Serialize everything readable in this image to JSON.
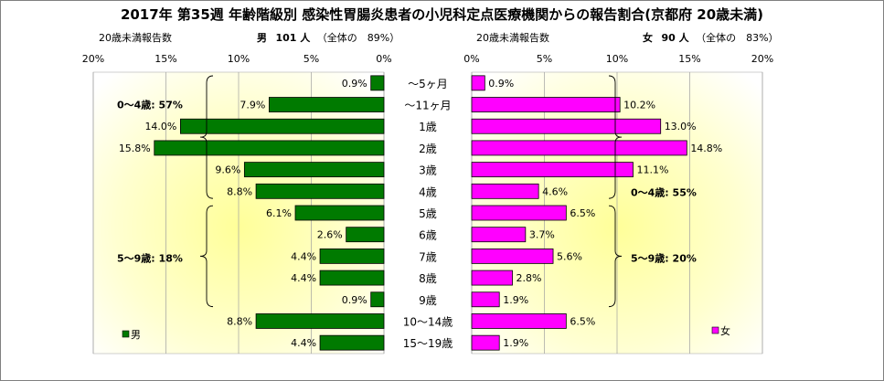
{
  "title": "2017年 第35週 年齢階級別 感染性胃腸炎患者の小児科定点医療機関からの報告割合(京都府 20歳未満)",
  "left_header": {
    "label": "20歳未満報告数",
    "sex": "男",
    "count_text": "101 人",
    "share_text": "（全体の　89%）"
  },
  "right_header": {
    "label": "20歳未満報告数",
    "sex": "女",
    "count_text": "90 人",
    "share_text": "（全体の　83%）"
  },
  "chart_data": {
    "type": "bar",
    "orientation": "horizontal",
    "layout": "population-pyramid",
    "categories": [
      "～5ヶ月",
      "～11ヶ月",
      "1歳",
      "2歳",
      "3歳",
      "4歳",
      "5歳",
      "6歳",
      "7歳",
      "8歳",
      "9歳",
      "10～14歳",
      "15～19歳"
    ],
    "x_ticks": [
      "20%",
      "15%",
      "10%",
      "5%",
      "0%"
    ],
    "x_ticks_right": [
      "0%",
      "5%",
      "10%",
      "15%",
      "20%"
    ],
    "xlim": [
      0,
      20
    ],
    "series": [
      {
        "name": "男",
        "side": "left",
        "color": "#007A00",
        "values": [
          0.9,
          7.9,
          14.0,
          15.8,
          9.6,
          8.8,
          6.1,
          2.6,
          4.4,
          4.4,
          0.9,
          8.8,
          4.4
        ],
        "labels": [
          "0.9%",
          "7.9%",
          "14.0%",
          "15.8%",
          "9.6%",
          "8.8%",
          "6.1%",
          "2.6%",
          "4.4%",
          "4.4%",
          "0.9%",
          "8.8%",
          "4.4%"
        ]
      },
      {
        "name": "女",
        "side": "right",
        "color": "#FF00FF",
        "values": [
          0.9,
          10.2,
          13.0,
          14.8,
          11.1,
          4.6,
          6.5,
          3.7,
          5.6,
          2.8,
          1.9,
          6.5,
          1.9
        ],
        "labels": [
          "0.9%",
          "10.2%",
          "13.0%",
          "14.8%",
          "11.1%",
          "4.6%",
          "6.5%",
          "3.7%",
          "5.6%",
          "2.8%",
          "1.9%",
          "6.5%",
          "1.9%"
        ]
      }
    ],
    "annotations": {
      "left": [
        {
          "text": "0～4歳: 57%",
          "from": 0,
          "to": 5
        },
        {
          "text": "5～9歳: 18%",
          "from": 6,
          "to": 10
        }
      ],
      "right": [
        {
          "text": "0～4歳: 55%",
          "from": 0,
          "to": 5
        },
        {
          "text": "5～9歳: 20%",
          "from": 6,
          "to": 10
        }
      ]
    },
    "legend": [
      {
        "name": "男",
        "color": "#007A00",
        "placement": "bottom-left"
      },
      {
        "name": "女",
        "color": "#FF00FF",
        "placement": "bottom-right"
      }
    ],
    "grid": true,
    "background": "yellow-radial-gradient"
  }
}
